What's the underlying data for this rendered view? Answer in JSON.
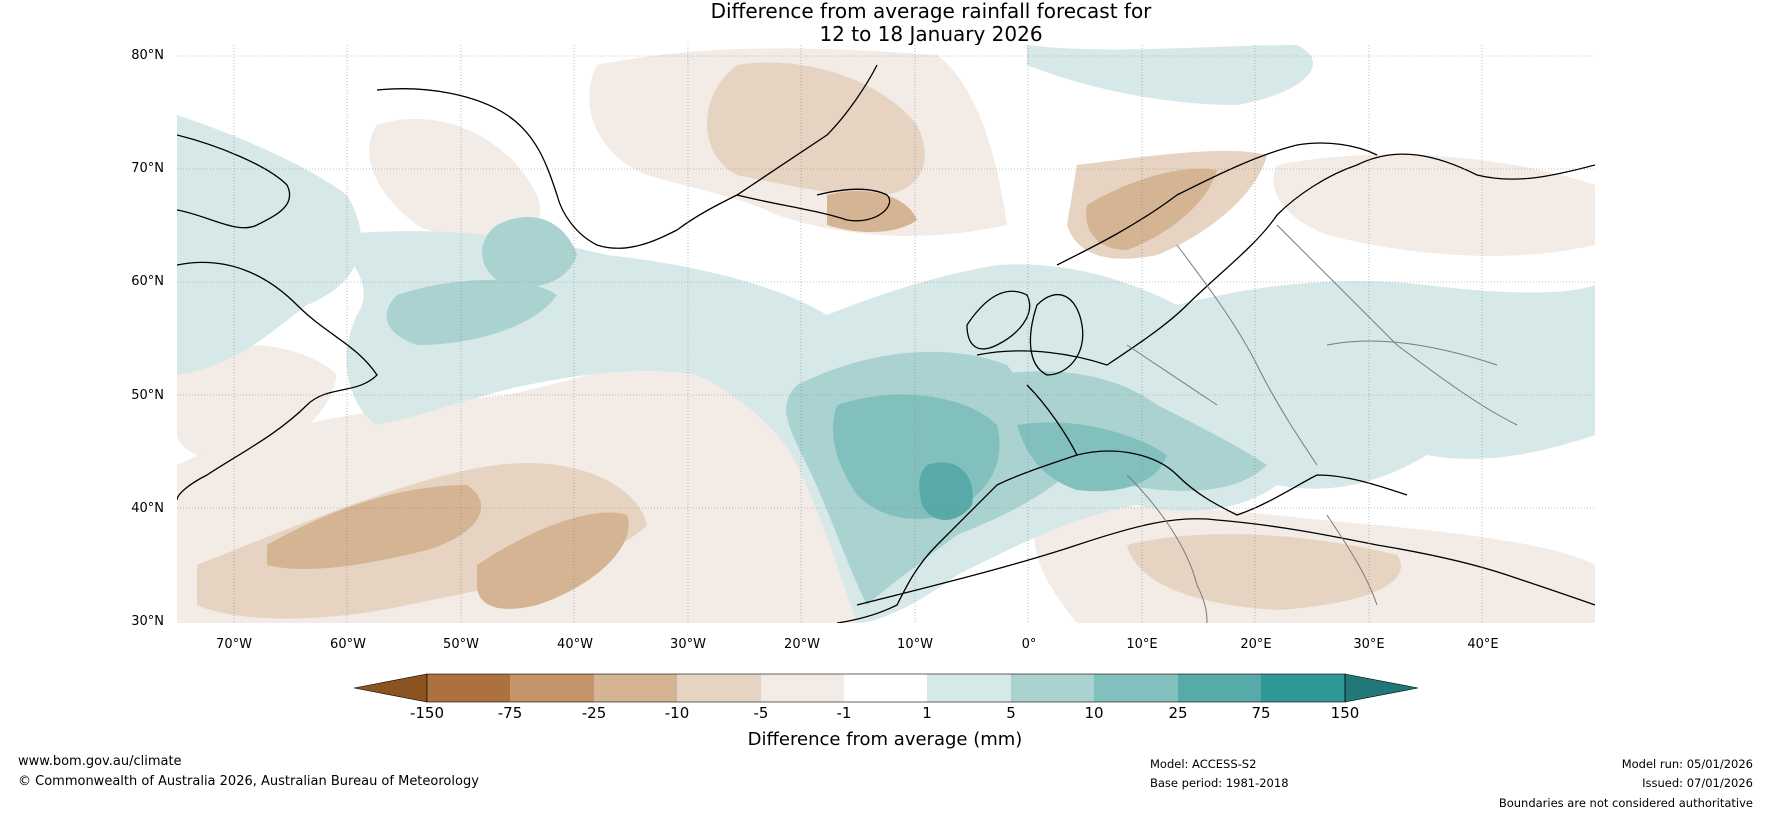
{
  "title": {
    "line1": "Difference from average rainfall forecast for",
    "line2": "12 to 18 January 2026"
  },
  "map": {
    "lat_labels": [
      "80°N",
      "70°N",
      "60°N",
      "50°N",
      "40°N",
      "30°N"
    ],
    "lon_labels": [
      "70°W",
      "60°W",
      "50°W",
      "40°W",
      "30°W",
      "20°W",
      "10°W",
      "0°",
      "10°E",
      "20°E",
      "30°E",
      "40°E"
    ],
    "region": "North Atlantic and Europe"
  },
  "colorbar": {
    "title": "Difference from average (mm)",
    "ticks": [
      "-150",
      "-75",
      "-25",
      "-10",
      "-5",
      "-1",
      "1",
      "5",
      "10",
      "25",
      "75",
      "150"
    ],
    "colors": [
      "#8a531f",
      "#ad7140",
      "#c4946a",
      "#d5b493",
      "#e6d3c2",
      "#f3ebe5",
      "#ffffff",
      "#d6e9e8",
      "#a9d2d1",
      "#82c0be",
      "#58aaa9",
      "#2f9896",
      "#217977"
    ]
  },
  "footer": {
    "website": "www.bom.gov.au/climate",
    "copyright": "© Commonwealth of Australia 2026, Australian Bureau of Meteorology",
    "model": "Model: ACCESS-S2",
    "base_period": "Base period: 1981-2018",
    "model_run": "Model run: 05/01/2026",
    "issued": "Issued: 07/01/2026",
    "disclaimer": "Boundaries are not considered authoritative"
  }
}
